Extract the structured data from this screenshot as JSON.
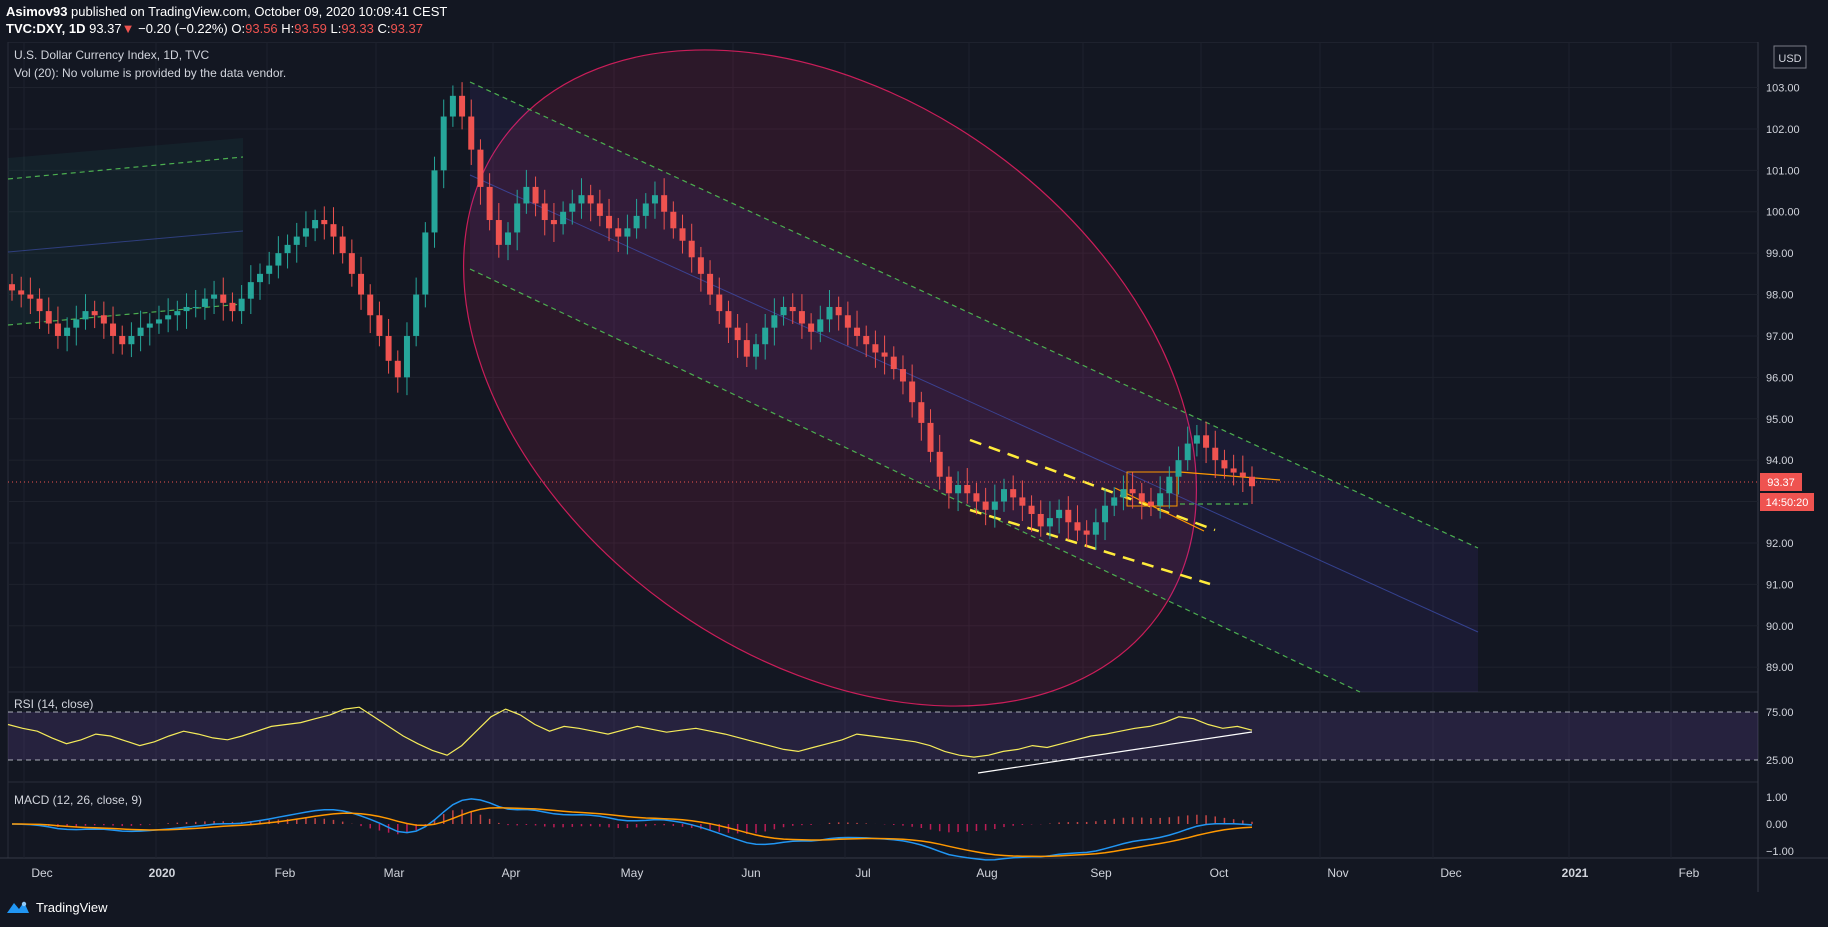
{
  "header": {
    "author": "Asimov93",
    "published_text": "published on TradingView.com, October 09, 2020 10:09:41 CEST",
    "symbol": "TVC:DXY, 1D",
    "last": "93.37",
    "change": "−0.20 (−0.22%)",
    "open_label": "O:",
    "open": "93.56",
    "high_label": "H:",
    "high": "93.59",
    "low_label": "L:",
    "low": "93.33",
    "close_label": "C:",
    "close": "93.37"
  },
  "main_pane": {
    "title": "U.S. Dollar Currency Index, 1D, TVC",
    "volume_note": "Vol (20): No volume is provided by the data vendor.",
    "currency": "USD",
    "price_label": "93.37",
    "countdown": "14:50:20"
  },
  "rsi_pane": {
    "title": "RSI (14, close)"
  },
  "macd_pane": {
    "title": "MACD (12, 26, close, 9)"
  },
  "footer": {
    "brand": "TradingView"
  },
  "colors": {
    "background": "#131722",
    "up_candle": "#26a69a",
    "down_candle": "#ef5350",
    "channel_line": "#4caf50",
    "ellipse": "#e91e63",
    "rsi_line": "#f5eb5a",
    "macd_line": "#2196f3",
    "signal_line": "#ff9800",
    "highlight_yellow": "#ffeb3b"
  },
  "chart_data": {
    "type": "candlestick",
    "x_axis": [
      "Dec",
      "2020",
      "Feb",
      "Mar",
      "Apr",
      "May",
      "Jun",
      "Jul",
      "Aug",
      "Sep",
      "Oct",
      "Nov",
      "Dec",
      "2021",
      "Feb"
    ],
    "y_ticks": [
      "103.00",
      "102.00",
      "101.00",
      "100.00",
      "99.00",
      "98.00",
      "97.00",
      "96.00",
      "95.00",
      "94.00",
      "93.00",
      "92.00",
      "91.00",
      "90.00",
      "89.00"
    ],
    "ylim": [
      88.4,
      104.1
    ],
    "close_series": [
      98.1,
      98.0,
      97.9,
      97.6,
      97.3,
      97.0,
      97.2,
      97.4,
      97.6,
      97.5,
      97.3,
      97.0,
      96.8,
      97.0,
      97.2,
      97.3,
      97.4,
      97.5,
      97.6,
      97.7,
      97.7,
      97.9,
      98.0,
      97.8,
      97.6,
      97.9,
      98.3,
      98.5,
      98.7,
      99.0,
      99.2,
      99.4,
      99.6,
      99.8,
      99.7,
      99.4,
      99.0,
      98.5,
      98.0,
      97.5,
      97.0,
      96.4,
      96.0,
      97.0,
      98.0,
      99.5,
      101.0,
      102.3,
      102.8,
      102.3,
      101.5,
      100.6,
      99.8,
      99.2,
      99.5,
      100.2,
      100.6,
      100.2,
      99.8,
      99.7,
      100.0,
      100.2,
      100.4,
      100.2,
      99.9,
      99.6,
      99.4,
      99.6,
      99.9,
      100.2,
      100.4,
      100.0,
      99.6,
      99.3,
      98.9,
      98.5,
      98.0,
      97.6,
      97.2,
      96.9,
      96.5,
      96.8,
      97.2,
      97.5,
      97.7,
      97.6,
      97.3,
      97.1,
      97.4,
      97.7,
      97.5,
      97.2,
      97.0,
      96.8,
      96.6,
      96.5,
      96.2,
      95.9,
      95.4,
      94.9,
      94.2,
      93.6,
      93.2,
      93.4,
      93.2,
      93.0,
      92.8,
      93.0,
      93.3,
      93.1,
      92.9,
      92.7,
      92.4,
      92.6,
      92.8,
      92.5,
      92.3,
      92.2,
      92.5,
      92.9,
      93.1,
      93.3,
      93.2,
      93.0,
      92.9,
      93.2,
      93.6,
      94.0,
      94.4,
      94.6,
      94.3,
      94.0,
      93.8,
      93.7,
      93.6,
      93.37
    ],
    "channel": {
      "upper_start": [
        103.1,
        "Mar"
      ],
      "upper_end": [
        91.6,
        "Dec"
      ],
      "lower_start": [
        98.6,
        "Mar"
      ],
      "lower_end": [
        88.4,
        "Dec"
      ]
    },
    "rsi": {
      "levels": [
        "75.00",
        "25.00"
      ],
      "values": [
        62,
        58,
        55,
        48,
        42,
        46,
        52,
        50,
        45,
        40,
        44,
        50,
        55,
        52,
        48,
        46,
        50,
        55,
        60,
        62,
        64,
        68,
        72,
        78,
        80,
        70,
        60,
        50,
        42,
        35,
        30,
        40,
        55,
        70,
        78,
        72,
        62,
        55,
        60,
        58,
        55,
        52,
        56,
        60,
        57,
        54,
        56,
        58,
        55,
        52,
        48,
        44,
        40,
        36,
        34,
        38,
        42,
        46,
        52,
        50,
        48,
        46,
        44,
        40,
        34,
        30,
        28,
        30,
        34,
        36,
        40,
        38,
        42,
        46,
        50,
        52,
        55,
        58,
        60,
        64,
        70,
        68,
        62,
        58,
        60,
        56
      ]
    },
    "macd": {
      "levels": [
        "1.00",
        "0.00",
        "−1.00"
      ]
    }
  }
}
